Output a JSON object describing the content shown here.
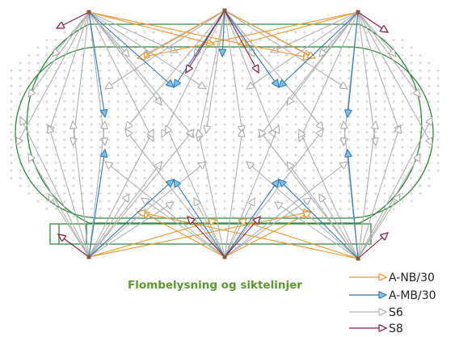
{
  "title": "Flombelysning og siktelinjer",
  "colors": {
    "title": "#5a9a2c",
    "track": "#2e8b3a",
    "grid": "#b9b9b9",
    "pole": "#8b5a3c"
  },
  "legend": [
    {
      "label": "A-NB/30",
      "color": "#f0972a"
    },
    {
      "label": "A-MB/30",
      "color": "#2a7ab7"
    },
    {
      "label": "S6",
      "color": "#b8b8b8"
    },
    {
      "label": "S8",
      "color": "#8c1a3a"
    }
  ]
}
